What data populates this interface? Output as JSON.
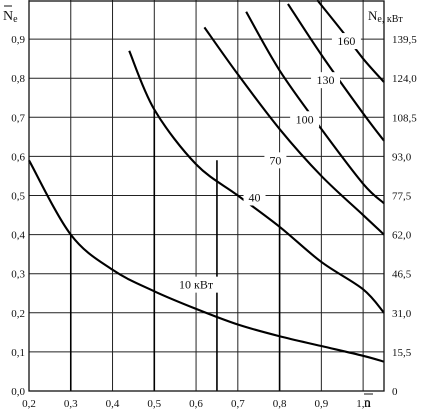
{
  "chart_data": {
    "type": "line",
    "xlabel": "n",
    "ylabel_left": "N",
    "ylabel_left_sub": "e",
    "ylabel_right": "N",
    "ylabel_right_sub": "e, кВт",
    "xlim": [
      0.2,
      1.05
    ],
    "ylim": [
      0.0,
      1.0
    ],
    "x_ticks": [
      {
        "value": 0.2,
        "label": "0,2"
      },
      {
        "value": 0.3,
        "label": "0,3"
      },
      {
        "value": 0.4,
        "label": "0,4"
      },
      {
        "value": 0.5,
        "label": "0,5"
      },
      {
        "value": 0.6,
        "label": "0,6"
      },
      {
        "value": 0.7,
        "label": "0,7"
      },
      {
        "value": 0.8,
        "label": "0,8"
      },
      {
        "value": 0.9,
        "label": "0,9"
      },
      {
        "value": 1.0,
        "label": "1,0"
      }
    ],
    "y_ticks_left": [
      {
        "value": 0.0,
        "label": "0,0"
      },
      {
        "value": 0.1,
        "label": "0,1"
      },
      {
        "value": 0.2,
        "label": "0,2"
      },
      {
        "value": 0.3,
        "label": "0,3"
      },
      {
        "value": 0.4,
        "label": "0,4"
      },
      {
        "value": 0.5,
        "label": "0,5"
      },
      {
        "value": 0.6,
        "label": "0,6"
      },
      {
        "value": 0.7,
        "label": "0,7"
      },
      {
        "value": 0.8,
        "label": "0,8"
      },
      {
        "value": 0.9,
        "label": "0,9"
      }
    ],
    "y_ticks_right": [
      {
        "value": 0.0,
        "label": "0"
      },
      {
        "value": 0.1,
        "label": "15,5"
      },
      {
        "value": 0.2,
        "label": "31,0"
      },
      {
        "value": 0.3,
        "label": "46,5"
      },
      {
        "value": 0.4,
        "label": "62,0"
      },
      {
        "value": 0.5,
        "label": "77,5"
      },
      {
        "value": 0.6,
        "label": "93,0"
      },
      {
        "value": 0.7,
        "label": "108,5"
      },
      {
        "value": 0.8,
        "label": "124,0"
      },
      {
        "value": 0.9,
        "label": "139,5"
      }
    ],
    "grid": true,
    "series": [
      {
        "label": "10 кВт",
        "label_at": [
          0.6,
          0.272
        ],
        "x": [
          0.2,
          0.3,
          0.4,
          0.5,
          0.6,
          0.7,
          0.8,
          0.9,
          1.0,
          1.05
        ],
        "y": [
          0.59,
          0.4,
          0.31,
          0.255,
          0.21,
          0.17,
          0.14,
          0.115,
          0.09,
          0.075
        ]
      },
      {
        "label": "40",
        "label_at": [
          0.74,
          0.495
        ],
        "x": [
          0.44,
          0.5,
          0.6,
          0.7,
          0.8,
          0.9,
          1.0,
          1.05
        ],
        "y": [
          0.87,
          0.72,
          0.58,
          0.5,
          0.42,
          0.33,
          0.26,
          0.2
        ]
      },
      {
        "label": "70",
        "label_at": [
          0.79,
          0.59
        ],
        "x": [
          0.62,
          0.7,
          0.8,
          0.9,
          1.0,
          1.05
        ],
        "y": [
          0.93,
          0.81,
          0.67,
          0.55,
          0.45,
          0.4
        ]
      },
      {
        "label": "100",
        "label_at": [
          0.86,
          0.695
        ],
        "x": [
          0.72,
          0.8,
          0.9,
          1.0,
          1.05
        ],
        "y": [
          0.97,
          0.82,
          0.67,
          0.53,
          0.48
        ]
      },
      {
        "label": "130",
        "label_at": [
          0.91,
          0.795
        ],
        "x": [
          0.82,
          0.9,
          1.0,
          1.05
        ],
        "y": [
          0.99,
          0.86,
          0.71,
          0.64
        ]
      },
      {
        "label": "160",
        "label_at": [
          0.96,
          0.895
        ],
        "x": [
          0.89,
          0.95,
          1.0,
          1.05
        ],
        "y": [
          1.0,
          0.92,
          0.85,
          0.79
        ]
      }
    ],
    "markers": [
      {
        "x": 0.3,
        "y": 0.4
      },
      {
        "x": 0.5,
        "y": 0.72
      },
      {
        "x": 0.8,
        "y": 0.5
      },
      {
        "x": 0.65,
        "y": 0.59
      }
    ]
  }
}
